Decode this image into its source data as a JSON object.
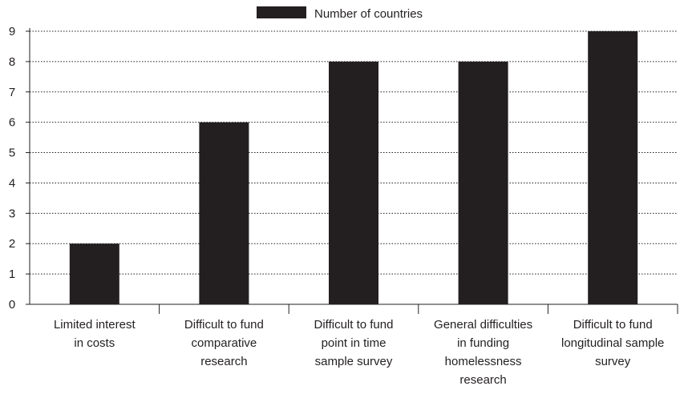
{
  "chart_data": {
    "type": "bar",
    "categories": [
      [
        "Limited interest",
        "in costs"
      ],
      [
        "Difficult to fund",
        "comparative",
        "research"
      ],
      [
        "Difficult to fund",
        "point in time",
        "sample survey"
      ],
      [
        "General difficulties",
        "in funding",
        "homelessness",
        "research"
      ],
      [
        "Difficult to fund",
        "longitudinal sample",
        "survey"
      ]
    ],
    "series": [
      {
        "name": "Number of countries",
        "values": [
          2,
          6,
          8,
          8,
          9
        ]
      }
    ],
    "ylim": [
      0,
      9
    ],
    "yticks": [
      0,
      1,
      2,
      3,
      4,
      5,
      6,
      7,
      8,
      9
    ],
    "grid": "horizontal dotted",
    "legend_position": "top-center",
    "colors": {
      "bar": "#231f20",
      "axis": "#231f20",
      "grid": "#231f20"
    }
  }
}
